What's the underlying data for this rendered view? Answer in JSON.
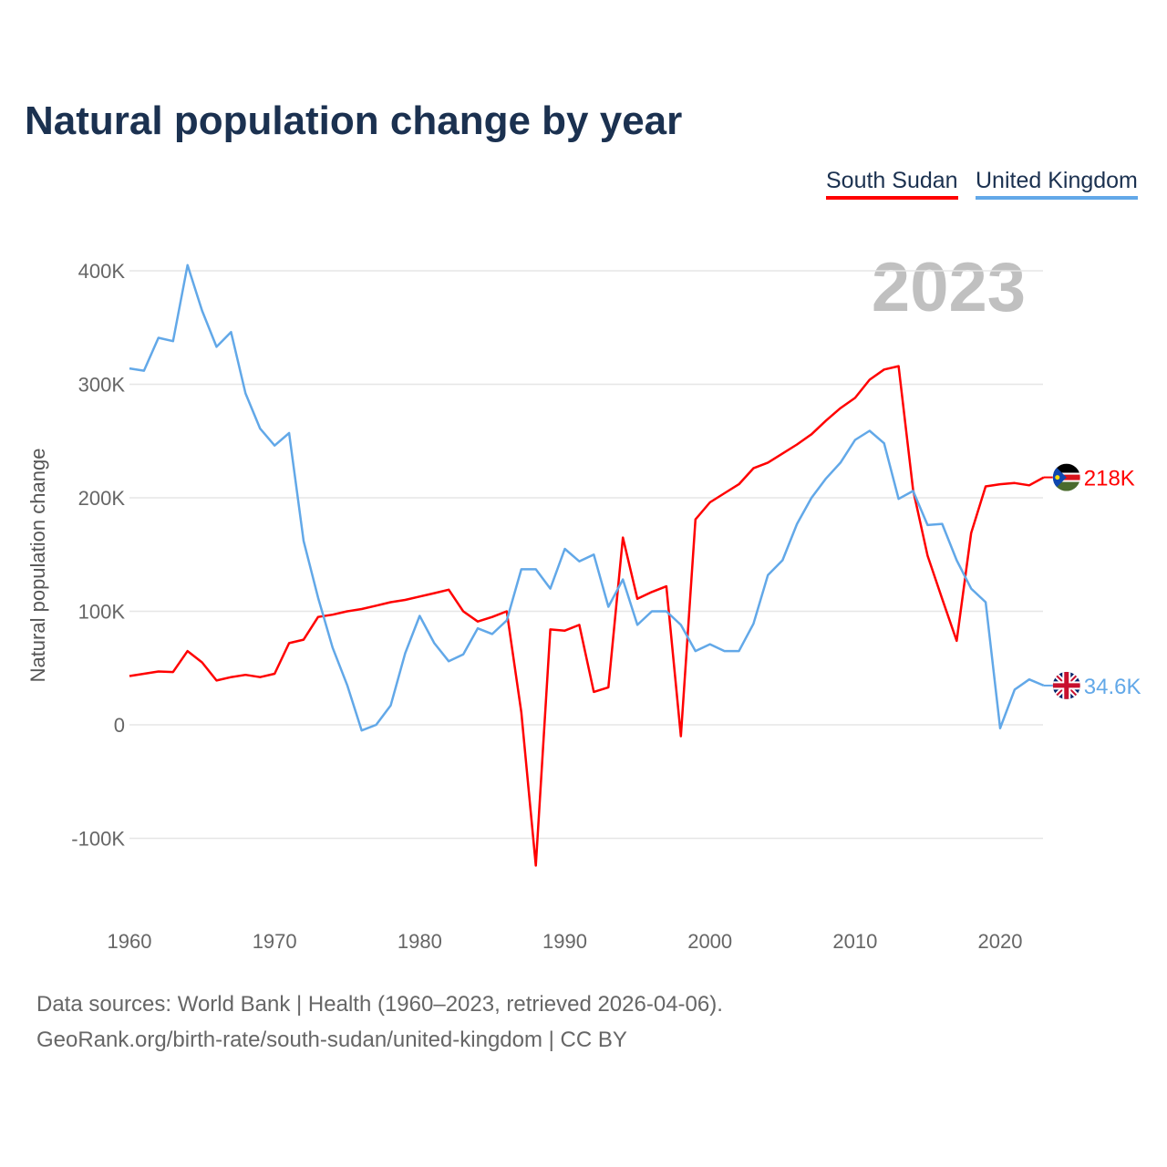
{
  "chart_data": {
    "type": "line",
    "title": "Natural population change by year",
    "xlabel": "",
    "ylabel": "Natural population change",
    "xlim": [
      1960,
      2023
    ],
    "ylim": [
      -130000,
      420000
    ],
    "xticks": [
      1960,
      1970,
      1980,
      1990,
      2000,
      2010,
      2020
    ],
    "yticks": [
      {
        "v": 400000,
        "l": "400K"
      },
      {
        "v": 300000,
        "l": "300K"
      },
      {
        "v": 200000,
        "l": "200K"
      },
      {
        "v": 100000,
        "l": "100K"
      },
      {
        "v": 0,
        "l": "0"
      },
      {
        "v": -100000,
        "l": "-100K"
      }
    ],
    "year_label": "2023",
    "x_start": 1960,
    "series": [
      {
        "name": "South Sudan",
        "color": "#ff0000",
        "end_label": "218K",
        "flag": "south-sudan-flag",
        "values": [
          43,
          45,
          47,
          46.5,
          65,
          55,
          39,
          42,
          44,
          42,
          45,
          72,
          75,
          95,
          97,
          100,
          102,
          105,
          108,
          110,
          113,
          116,
          119,
          100,
          91,
          95,
          100,
          11,
          -124,
          84,
          83,
          88,
          29,
          33,
          165,
          111,
          117,
          122,
          -10,
          181,
          196,
          204,
          212,
          226,
          231,
          239,
          247,
          256,
          268,
          279,
          288,
          304,
          313,
          316,
          207,
          149,
          111,
          74,
          169,
          210,
          212,
          213,
          211,
          218
        ]
      },
      {
        "name": "United Kingdom",
        "color": "#62a8e8",
        "end_label": "34.6K",
        "flag": "united-kingdom-flag",
        "values": [
          314,
          312,
          341,
          338,
          405,
          365,
          333,
          346,
          292,
          261,
          246,
          257,
          162,
          112,
          68,
          35,
          -5,
          0,
          17,
          63,
          96,
          72,
          56,
          62,
          85,
          80,
          92,
          137,
          137,
          120,
          155,
          144,
          150,
          104,
          128,
          88,
          100,
          100,
          88,
          65,
          71,
          65,
          65,
          89,
          132,
          145,
          177,
          200,
          217,
          231,
          251,
          259,
          248,
          199,
          206,
          176,
          177,
          145,
          120,
          108,
          -3,
          31,
          40,
          34.6
        ]
      }
    ],
    "value_unit": "thousands"
  },
  "footer": {
    "line1": "Data sources: World Bank | Health (1960–2023, retrieved 2026-04-06).",
    "line2": "GeoRank.org/birth-rate/south-sudan/united-kingdom | CC BY"
  }
}
